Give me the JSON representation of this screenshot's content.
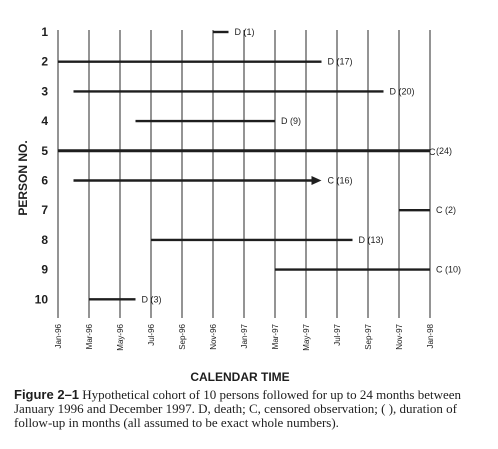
{
  "chart_data": {
    "type": "timeline",
    "ylabel": "PERSON NO.",
    "xlabel": "CALENDAR TIME",
    "x_tick_labels": [
      "Jan-96",
      "Mar-96",
      "May-96",
      "Jul-96",
      "Sep-96",
      "Nov-96",
      "Jan-97",
      "Mar-97",
      "May-97",
      "Jul-97",
      "Sep-97",
      "Nov-97",
      "Jan-98"
    ],
    "xlim": [
      "Jan-96",
      "Jan-98"
    ],
    "grid": "vertical",
    "persons": [
      {
        "id": "1",
        "start": "Nov-96",
        "end": "Dec-96",
        "outcome": "D",
        "duration": 1,
        "label": "D (1)",
        "arrow": false
      },
      {
        "id": "2",
        "start": "Jan-96",
        "end": "Jun-97",
        "outcome": "D",
        "duration": 17,
        "label": "D (17)",
        "arrow": false
      },
      {
        "id": "3",
        "start": "Feb-96",
        "end": "Oct-97",
        "outcome": "D",
        "duration": 20,
        "label": "D (20)",
        "arrow": false
      },
      {
        "id": "4",
        "start": "Jun-96",
        "end": "Mar-97",
        "outcome": "D",
        "duration": 9,
        "label": "D (9)",
        "arrow": false
      },
      {
        "id": "5",
        "start": "Jan-96",
        "end": "Jan-98",
        "outcome": "C",
        "duration": 24,
        "label": "(24)",
        "arrow": false
      },
      {
        "id": "6",
        "start": "Feb-96",
        "end": "Jun-97",
        "outcome": "C",
        "duration": 16,
        "label": "C (16)",
        "arrow": true
      },
      {
        "id": "7",
        "start": "Nov-97",
        "end": "Jan-98",
        "outcome": "C",
        "duration": 2,
        "label": "C (2)",
        "arrow": false
      },
      {
        "id": "8",
        "start": "Jul-96",
        "end": "Aug-97",
        "outcome": "D",
        "duration": 13,
        "label": "D (13)",
        "arrow": false
      },
      {
        "id": "9",
        "start": "Mar-97",
        "end": "Jan-98",
        "outcome": "C",
        "duration": 10,
        "label": "C (10)",
        "arrow": false
      },
      {
        "id": "10",
        "start": "Mar-96",
        "end": "Jun-96",
        "outcome": "D",
        "duration": 3,
        "label": "D (3)",
        "arrow": false
      }
    ],
    "person5_end_mark": "C"
  },
  "caption": {
    "label": "Figure 2–1",
    "text": "Hypothetical cohort of 10 persons followed for up to 24 months between January 1996 and December 1997. D, death; C, censored observation; ( ), duration of follow-up in months (all assumed to be exact whole numbers)."
  },
  "colors": {
    "ink": "#1e1e1e",
    "grid": "#2a2a2a",
    "background": "#ffffff"
  }
}
